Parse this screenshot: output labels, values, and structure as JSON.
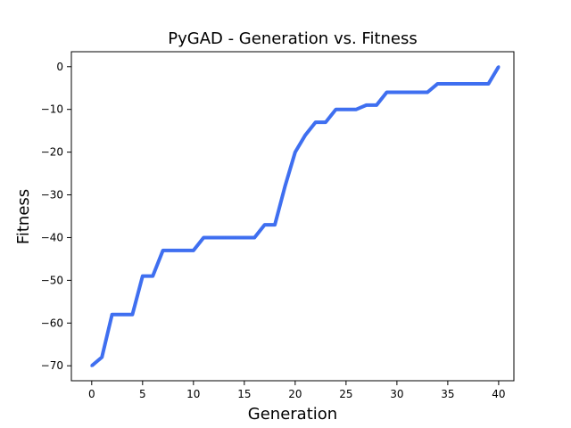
{
  "chart_data": {
    "type": "line",
    "title": "PyGAD - Generation vs. Fitness",
    "xlabel": "Generation",
    "ylabel": "Fitness",
    "xlim": [
      -2,
      41.5
    ],
    "ylim": [
      -73.5,
      3.5
    ],
    "xticks": [
      0,
      5,
      10,
      15,
      20,
      25,
      30,
      35,
      40
    ],
    "yticks": [
      0,
      -10,
      -20,
      -30,
      -40,
      -50,
      -60,
      -70
    ],
    "grid": false,
    "line_color": "#3f6ff0",
    "series": [
      {
        "x": [
          0,
          1,
          2,
          3,
          4,
          5,
          6,
          7,
          8,
          9,
          10,
          11,
          12,
          13,
          14,
          15,
          16,
          17,
          18,
          19,
          20,
          21,
          22,
          23,
          24,
          25,
          26,
          27,
          28,
          29,
          30,
          31,
          32,
          33,
          34,
          35,
          36,
          37,
          38,
          39,
          40
        ],
        "values": [
          -70,
          -68,
          -58,
          -58,
          -58,
          -49,
          -49,
          -43,
          -43,
          -43,
          -43,
          -40,
          -40,
          -40,
          -40,
          -40,
          -40,
          -37,
          -37,
          -28,
          -20,
          -16,
          -13,
          -13,
          -10,
          -10,
          -10,
          -9,
          -9,
          -6,
          -6,
          -6,
          -6,
          -6,
          -4,
          -4,
          -4,
          -4,
          -4,
          -4,
          0
        ]
      }
    ]
  }
}
